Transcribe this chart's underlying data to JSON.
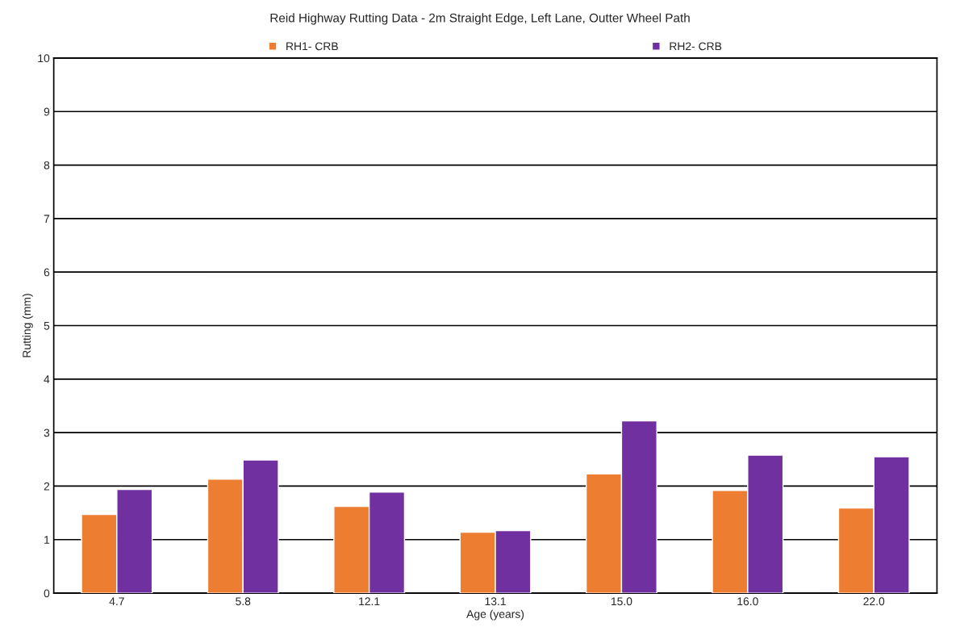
{
  "chart_data": {
    "type": "bar",
    "title": "Reid Highway Rutting Data - 2m Straight Edge, Left Lane, Outter Wheel Path",
    "xlabel": "Age (years)",
    "ylabel": "Rutting (mm)",
    "categories": [
      "4.7",
      "5.8",
      "12.1",
      "13.1",
      "15.0",
      "16.0",
      "22.0"
    ],
    "series": [
      {
        "name": "RH1- CRB",
        "color": "#ed7d31",
        "values": [
          1.47,
          2.13,
          1.62,
          1.14,
          2.23,
          1.92,
          1.59
        ]
      },
      {
        "name": "RH2- CRB",
        "color": "#7030a0",
        "values": [
          1.94,
          2.49,
          1.89,
          1.17,
          3.22,
          2.58,
          2.55
        ]
      }
    ],
    "ylim": [
      0,
      10
    ],
    "yticks": [
      0,
      1,
      2,
      3,
      4,
      5,
      6,
      7,
      8,
      9,
      10
    ],
    "grid": "y",
    "legend": "top"
  }
}
